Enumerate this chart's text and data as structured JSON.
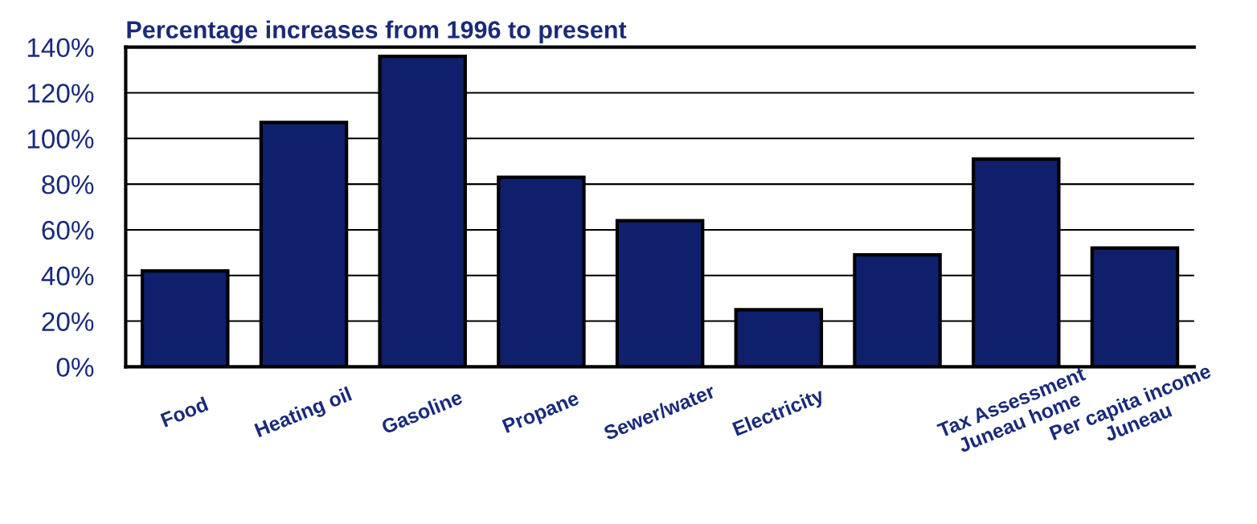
{
  "chart_data": {
    "type": "bar",
    "title": "Percentage increases from 1996 to present",
    "categories": [
      "Food",
      "Heating oil",
      "Gasoline",
      "Propane",
      "Sewer/water",
      "Electricity",
      null,
      "Tax Assessment\nJuneau home",
      "Per capita income\nJuneau"
    ],
    "values": [
      42,
      107,
      136,
      83,
      64,
      25,
      49,
      91,
      52
    ],
    "color": "#0f1f6b",
    "ylim": [
      0,
      140
    ],
    "yticks": [
      {
        "value": 0,
        "label": "0%"
      },
      {
        "value": 20,
        "label": "20%"
      },
      {
        "value": 40,
        "label": "40%"
      },
      {
        "value": 60,
        "label": "60%"
      },
      {
        "value": 80,
        "label": "80%"
      },
      {
        "value": 100,
        "label": "100%"
      },
      {
        "value": 120,
        "label": "120%"
      },
      {
        "value": 140,
        "label": "140%"
      }
    ],
    "grid": "y"
  }
}
